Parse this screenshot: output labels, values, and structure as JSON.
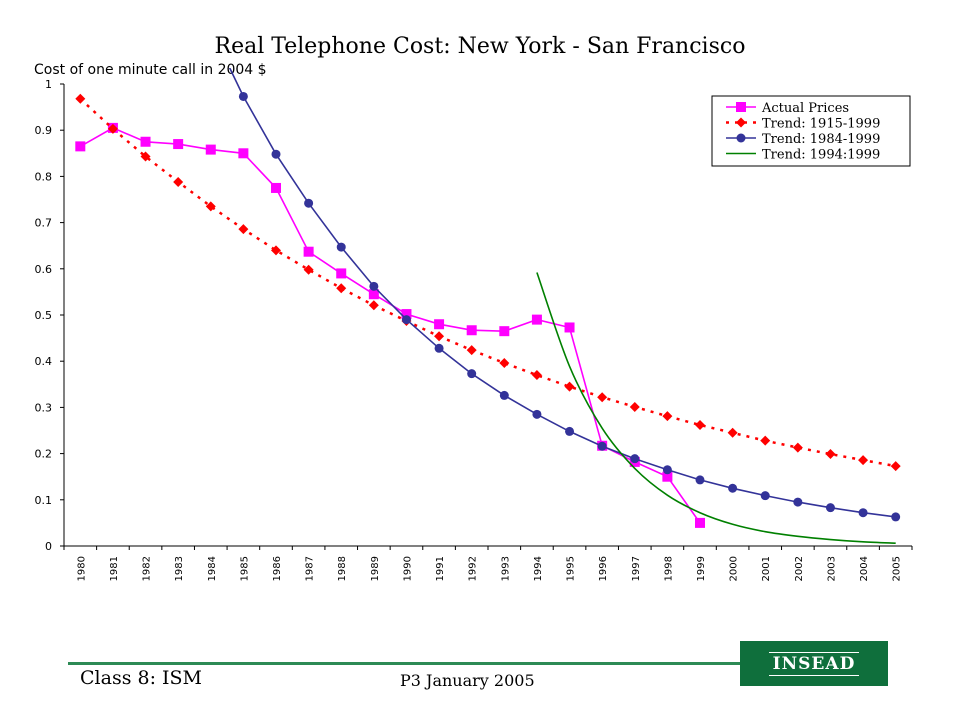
{
  "chart_data": {
    "type": "line",
    "title": "Real Telephone Cost: New York - San Francisco",
    "ylabel": "Cost of one minute call in 2004 $",
    "xlabel": "",
    "categories": [
      "1980",
      "1981",
      "1982",
      "1983",
      "1984",
      "1985",
      "1986",
      "1987",
      "1988",
      "1989",
      "1990",
      "1991",
      "1992",
      "1993",
      "1994",
      "1995",
      "1996",
      "1997",
      "1998",
      "1999",
      "2000",
      "2001",
      "2002",
      "2003",
      "2004",
      "2005"
    ],
    "ylim": [
      0,
      1
    ],
    "yticks": [
      0,
      0.1,
      0.2,
      0.3,
      0.4,
      0.5,
      0.6,
      0.7,
      0.8,
      0.9,
      1
    ],
    "grid": false,
    "legend_position": "top-right",
    "series": [
      {
        "name": "Actual Prices",
        "color": "#ff00ff",
        "marker": "square",
        "style": "solid",
        "values": [
          0.865,
          0.905,
          0.875,
          0.87,
          0.858,
          0.85,
          0.775,
          0.637,
          0.59,
          0.545,
          0.502,
          0.48,
          0.467,
          0.465,
          0.49,
          0.473,
          0.217,
          0.182,
          0.15,
          0.05,
          null,
          null,
          null,
          null,
          null,
          null
        ]
      },
      {
        "name": "Trend: 1915-1999",
        "color": "#ff0000",
        "marker": "diamond",
        "style": "dotted",
        "values": [
          0.968,
          0.903,
          0.843,
          0.788,
          0.735,
          0.686,
          0.64,
          0.598,
          0.558,
          0.521,
          0.487,
          0.454,
          0.424,
          0.396,
          0.37,
          0.345,
          0.322,
          0.301,
          0.281,
          0.262,
          0.245,
          0.228,
          0.213,
          0.199,
          0.186,
          0.173
        ]
      },
      {
        "name": "Trend: 1984-1999",
        "color": "#333399",
        "marker": "circle",
        "style": "solid",
        "values": [
          null,
          null,
          null,
          null,
          null,
          0.973,
          0.848,
          0.742,
          0.647,
          0.562,
          0.49,
          0.428,
          0.373,
          0.326,
          0.285,
          0.248,
          0.216,
          0.189,
          0.165,
          0.143,
          0.125,
          0.109,
          0.095,
          0.083,
          0.072,
          0.063
        ]
      },
      {
        "name": "Trend: 1994:1999",
        "color": "#008000",
        "marker": "none",
        "style": "solid",
        "values": [
          null,
          null,
          null,
          null,
          null,
          null,
          null,
          null,
          null,
          null,
          null,
          null,
          null,
          null,
          0.592,
          0.389,
          0.255,
          0.168,
          0.11,
          0.072,
          0.047,
          0.031,
          0.021,
          0.014,
          0.009,
          0.006
        ]
      }
    ]
  },
  "footer": {
    "class_label": "Class 8: ISM",
    "date_label": "P3 January 2005",
    "logo_text": "INSEAD"
  }
}
